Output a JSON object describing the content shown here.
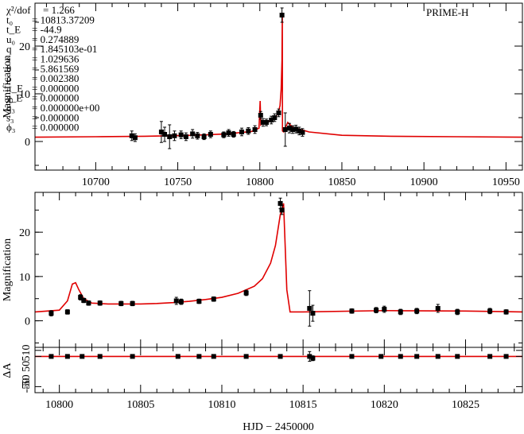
{
  "chart_data": [
    {
      "type": "line",
      "panel": "top",
      "instrument": "PRIME-H",
      "ylabel": "Magnification",
      "xlim": [
        10663,
        10960
      ],
      "ylim": [
        -6,
        29
      ],
      "xticks": [
        10700,
        10750,
        10800,
        10850,
        10900,
        10950
      ],
      "yticks": [
        0,
        10,
        20
      ],
      "params": [
        {
          "name": "χ²/dof",
          "value": "= 1.266"
        },
        {
          "name": "t₀",
          "value": "= 10813.37209"
        },
        {
          "name": "t_E",
          "value": "= -44.9"
        },
        {
          "name": "u₀",
          "value": "= 0.274889"
        },
        {
          "name": "q",
          "value": "= 1.845103e-01"
        },
        {
          "name": "s",
          "value": "= 1.029636"
        },
        {
          "name": "θ",
          "value": "= 5.861569"
        },
        {
          "name": "ρ",
          "value": "= 0.002380"
        },
        {
          "name": "π_E",
          "value": "= 0.000000"
        },
        {
          "name": "χ_E",
          "value": "= 0.000000"
        },
        {
          "name": "q₃",
          "value": "= 0.000000e+00"
        },
        {
          "name": "s₃",
          "value": "= 0.000000"
        },
        {
          "name": "ϕ₃",
          "value": "= 0.000000"
        }
      ],
      "model": {
        "x": [
          10663,
          10700,
          10730,
          10760,
          10780,
          10795,
          10799.5,
          10800.2,
          10800.6,
          10801.5,
          10803,
          10806,
          10809,
          10811,
          10812.3,
          10813,
          10813.5,
          10813.7,
          10813.8,
          10814.5,
          10817,
          10820,
          10830,
          10850,
          10880,
          10920,
          10960
        ],
        "y": [
          0.9,
          1.0,
          1.1,
          1.3,
          1.6,
          2.1,
          2.8,
          8.5,
          3.5,
          3.8,
          4.0,
          4.3,
          4.9,
          5.8,
          7.5,
          11.0,
          17.0,
          26.8,
          2.2,
          2.0,
          4.0,
          3.0,
          2.0,
          1.3,
          1.1,
          1.0,
          0.9
        ]
      },
      "points": [
        {
          "x": 10722,
          "y": 1.2,
          "err": 1.0
        },
        {
          "x": 10724,
          "y": 0.8,
          "err": 0.8
        },
        {
          "x": 10740,
          "y": 2.0,
          "err": 2.2
        },
        {
          "x": 10742,
          "y": 1.5,
          "err": 1.5
        },
        {
          "x": 10745,
          "y": 1.0,
          "err": 2.5
        },
        {
          "x": 10748,
          "y": 1.2,
          "err": 1.0
        },
        {
          "x": 10752,
          "y": 1.4,
          "err": 0.8
        },
        {
          "x": 10755,
          "y": 1.0,
          "err": 0.8
        },
        {
          "x": 10759,
          "y": 1.6,
          "err": 0.9
        },
        {
          "x": 10762,
          "y": 1.2,
          "err": 0.7
        },
        {
          "x": 10766,
          "y": 1.0,
          "err": 0.6
        },
        {
          "x": 10770,
          "y": 1.5,
          "err": 0.7
        },
        {
          "x": 10778,
          "y": 1.4,
          "err": 0.6
        },
        {
          "x": 10781,
          "y": 1.8,
          "err": 0.7
        },
        {
          "x": 10784,
          "y": 1.5,
          "err": 0.6
        },
        {
          "x": 10789,
          "y": 2.0,
          "err": 0.8
        },
        {
          "x": 10793,
          "y": 2.2,
          "err": 0.7
        },
        {
          "x": 10797,
          "y": 2.5,
          "err": 0.8
        },
        {
          "x": 10800.5,
          "y": 5.5,
          "err": 0.8
        },
        {
          "x": 10802,
          "y": 4.0,
          "err": 0.8
        },
        {
          "x": 10804,
          "y": 4.0,
          "err": 0.7
        },
        {
          "x": 10807,
          "y": 4.5,
          "err": 0.8
        },
        {
          "x": 10809,
          "y": 5.0,
          "err": 0.8
        },
        {
          "x": 10811.5,
          "y": 6.0,
          "err": 0.8
        },
        {
          "x": 10813.5,
          "y": 26.5,
          "err": 1.5
        },
        {
          "x": 10815.5,
          "y": 2.5,
          "err": 3.5
        },
        {
          "x": 10818,
          "y": 2.8,
          "err": 1.0
        },
        {
          "x": 10820,
          "y": 2.5,
          "err": 0.8
        },
        {
          "x": 10822,
          "y": 2.6,
          "err": 0.8
        },
        {
          "x": 10824,
          "y": 2.2,
          "err": 0.8
        },
        {
          "x": 10826,
          "y": 1.9,
          "err": 0.8
        }
      ]
    },
    {
      "type": "line",
      "panel": "middle",
      "ylabel": "Magnification",
      "xlim": [
        10798.5,
        10828.5
      ],
      "ylim": [
        -6,
        29
      ],
      "yticks": [
        0,
        10,
        20
      ],
      "model": {
        "x": [
          10798.5,
          10800.0,
          10800.5,
          10800.8,
          10801.0,
          10801.2,
          10801.5,
          10802,
          10803,
          10804,
          10805,
          10806,
          10807,
          10808,
          10809,
          10810,
          10811,
          10812,
          10812.5,
          10813.0,
          10813.3,
          10813.6,
          10813.8,
          10814.0,
          10814.2,
          10815,
          10820,
          10825,
          10828.5
        ],
        "y": [
          2.0,
          2.4,
          4.5,
          8.3,
          8.6,
          7.0,
          5.0,
          4.0,
          3.8,
          3.8,
          3.8,
          3.9,
          4.1,
          4.4,
          4.8,
          5.3,
          6.2,
          7.8,
          9.5,
          13.0,
          17.0,
          24.0,
          26.5,
          7.0,
          2.0,
          2.0,
          2.3,
          2.2,
          2.0
        ]
      },
      "points": [
        {
          "x": 10799.5,
          "y": 1.7,
          "err": 0.6
        },
        {
          "x": 10800.5,
          "y": 2.0,
          "err": 0.5
        },
        {
          "x": 10801.3,
          "y": 5.3,
          "err": 0.6
        },
        {
          "x": 10801.5,
          "y": 4.6,
          "err": 0.5
        },
        {
          "x": 10801.8,
          "y": 4.0,
          "err": 0.5
        },
        {
          "x": 10802.5,
          "y": 4.0,
          "err": 0.5
        },
        {
          "x": 10803.8,
          "y": 3.9,
          "err": 0.5
        },
        {
          "x": 10804.5,
          "y": 3.9,
          "err": 0.5
        },
        {
          "x": 10807.2,
          "y": 4.5,
          "err": 0.8
        },
        {
          "x": 10807.5,
          "y": 4.3,
          "err": 0.6
        },
        {
          "x": 10808.6,
          "y": 4.4,
          "err": 0.5
        },
        {
          "x": 10809.5,
          "y": 4.9,
          "err": 0.5
        },
        {
          "x": 10811.5,
          "y": 6.3,
          "err": 0.6
        },
        {
          "x": 10813.6,
          "y": 26.5,
          "err": 1.2
        },
        {
          "x": 10813.7,
          "y": 25.0,
          "err": 1.0
        },
        {
          "x": 10815.4,
          "y": 2.8,
          "err": 4.0
        },
        {
          "x": 10815.6,
          "y": 1.7,
          "err": 1.8
        },
        {
          "x": 10818.0,
          "y": 2.2,
          "err": 0.5
        },
        {
          "x": 10819.5,
          "y": 2.4,
          "err": 0.6
        },
        {
          "x": 10820.0,
          "y": 2.6,
          "err": 0.7
        },
        {
          "x": 10821.0,
          "y": 2.0,
          "err": 0.6
        },
        {
          "x": 10822.0,
          "y": 2.2,
          "err": 0.6
        },
        {
          "x": 10823.3,
          "y": 2.8,
          "err": 0.9
        },
        {
          "x": 10824.5,
          "y": 2.0,
          "err": 0.6
        },
        {
          "x": 10826.5,
          "y": 2.2,
          "err": 0.6
        },
        {
          "x": 10827.5,
          "y": 2.0,
          "err": 0.5
        }
      ]
    },
    {
      "type": "scatter",
      "panel": "residual",
      "ylabel": "ΔA",
      "xlabel": "HJD − 2450000",
      "xlim": [
        10798.5,
        10828.5
      ],
      "ylim": [
        -60,
        15
      ],
      "xticks": [
        10800,
        10805,
        10810,
        10815,
        10820,
        10825
      ],
      "ytick_labels": [
        "510",
        "-50 50",
        "-50"
      ],
      "points": [
        {
          "x": 10799.5,
          "y": 0,
          "err": 1.5
        },
        {
          "x": 10800.5,
          "y": 0,
          "err": 1.5
        },
        {
          "x": 10801.4,
          "y": 0,
          "err": 2.0
        },
        {
          "x": 10802.5,
          "y": 0,
          "err": 1.5
        },
        {
          "x": 10804.5,
          "y": 0,
          "err": 1.5
        },
        {
          "x": 10807.3,
          "y": 0,
          "err": 2.0
        },
        {
          "x": 10808.6,
          "y": 0,
          "err": 1.5
        },
        {
          "x": 10809.5,
          "y": 0,
          "err": 1.5
        },
        {
          "x": 10811.5,
          "y": 0,
          "err": 1.5
        },
        {
          "x": 10813.6,
          "y": 0,
          "err": 2.0
        },
        {
          "x": 10815.4,
          "y": 0,
          "err": 8.0
        },
        {
          "x": 10815.6,
          "y": -3,
          "err": 4.0
        },
        {
          "x": 10818.0,
          "y": 0,
          "err": 1.5
        },
        {
          "x": 10819.8,
          "y": 0,
          "err": 2.0
        },
        {
          "x": 10821.0,
          "y": 0,
          "err": 2.0
        },
        {
          "x": 10822.0,
          "y": 0,
          "err": 1.5
        },
        {
          "x": 10823.3,
          "y": 0,
          "err": 2.5
        },
        {
          "x": 10824.5,
          "y": 0,
          "err": 1.5
        },
        {
          "x": 10826.5,
          "y": 0,
          "err": 1.5
        },
        {
          "x": 10827.5,
          "y": 0,
          "err": 1.5
        }
      ]
    }
  ]
}
